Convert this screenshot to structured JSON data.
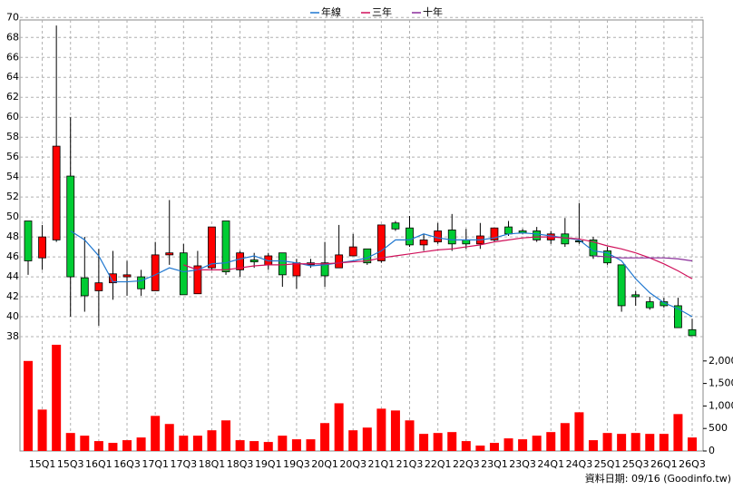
{
  "chart_data": {
    "type": "candlestick",
    "legend": [
      "年線",
      "三年",
      "十年"
    ],
    "footer": "資料日期: 09/16  (Goodinfo.tw)",
    "categories": [
      null,
      "15Q1",
      null,
      "15Q3",
      null,
      "16Q1",
      null,
      "16Q3",
      null,
      "17Q1",
      null,
      "17Q3",
      null,
      "18Q1",
      null,
      "18Q3",
      null,
      "19Q1",
      null,
      "19Q3",
      null,
      "20Q1",
      null,
      "20Q3",
      null,
      "21Q1",
      null,
      "21Q3",
      null,
      "22Q1",
      null,
      "22Q3",
      null,
      "23Q1",
      null,
      "23Q3",
      null,
      "24Q1",
      null,
      "24Q3",
      null,
      "25Q1",
      null,
      "25Q3",
      null,
      "26Q1",
      null,
      "26Q3"
    ],
    "open": [
      49.6,
      45.9,
      47.7,
      54.1,
      43.9,
      42.6,
      43.4,
      44.0,
      44.0,
      42.6,
      46.2,
      46.4,
      42.3,
      44.9,
      49.6,
      44.7,
      45.7,
      45.2,
      46.4,
      44.1,
      45.2,
      45.4,
      44.9,
      46.1,
      46.8,
      45.6,
      49.4,
      48.9,
      47.2,
      47.5,
      48.7,
      47.7,
      47.3,
      47.7,
      49.0,
      48.6,
      48.6,
      47.7,
      48.3,
      47.6,
      47.7,
      46.6,
      45.2,
      42.2,
      41.5,
      41.5,
      41.1,
      38.7
    ],
    "high": [
      49.6,
      49.2,
      69.2,
      60.0,
      48.0,
      46.8,
      46.6,
      45.6,
      44.7,
      47.5,
      51.7,
      47.3,
      46.6,
      49.0,
      49.6,
      46.6,
      46.4,
      46.4,
      46.4,
      45.8,
      45.8,
      47.5,
      49.2,
      48.3,
      46.8,
      49.2,
      49.6,
      50.1,
      48.3,
      49.4,
      50.3,
      48.8,
      49.4,
      48.9,
      49.6,
      48.8,
      49.0,
      48.6,
      49.9,
      51.4,
      48.0,
      47.0,
      45.2,
      42.6,
      42.0,
      41.9,
      41.9,
      39.8
    ],
    "low": [
      44.2,
      44.7,
      47.5,
      40.0,
      40.5,
      39.1,
      41.7,
      42.1,
      42.1,
      42.6,
      45.2,
      42.2,
      42.3,
      44.7,
      44.2,
      44.0,
      44.9,
      44.7,
      43.0,
      42.8,
      44.9,
      43.0,
      44.9,
      46.1,
      45.2,
      45.4,
      48.6,
      47.0,
      46.6,
      47.3,
      46.6,
      46.8,
      46.8,
      47.5,
      48.1,
      48.3,
      47.5,
      47.3,
      47.0,
      47.3,
      45.8,
      45.2,
      40.5,
      41.1,
      40.7,
      40.9,
      38.9,
      38.1
    ],
    "close": [
      45.6,
      48.0,
      57.1,
      44.0,
      42.1,
      43.4,
      44.3,
      44.2,
      42.8,
      46.2,
      46.4,
      42.2,
      45.1,
      49.0,
      44.5,
      46.4,
      45.5,
      46.1,
      44.2,
      45.4,
      45.4,
      44.1,
      46.2,
      47.0,
      45.4,
      49.2,
      48.8,
      47.2,
      47.7,
      48.6,
      47.3,
      47.3,
      48.1,
      48.9,
      48.3,
      48.4,
      47.7,
      48.3,
      47.3,
      47.5,
      46.1,
      45.4,
      41.1,
      42.0,
      40.9,
      41.1,
      38.9,
      38.1
    ],
    "up_color": "#ff0000",
    "down_color": "#00cc33",
    "series": [
      {
        "name": "年線",
        "color": "#1f77d0",
        "values": [
          null,
          null,
          null,
          48.6,
          47.7,
          46.1,
          43.5,
          43.5,
          43.6,
          44.2,
          44.9,
          44.5,
          44.7,
          45.3,
          45.4,
          45.8,
          46.1,
          45.6,
          45.6,
          45.4,
          45.1,
          45.2,
          45.4,
          45.6,
          45.9,
          46.6,
          47.7,
          47.7,
          48.3,
          47.9,
          47.7,
          47.7,
          47.7,
          47.9,
          48.3,
          48.4,
          48.3,
          48.1,
          47.9,
          47.7,
          46.6,
          46.4,
          45.6,
          43.8,
          42.4,
          41.4,
          40.8,
          40.0
        ]
      },
      {
        "name": "三年",
        "color": "#d0105a",
        "values": [
          null,
          null,
          null,
          null,
          null,
          null,
          null,
          null,
          null,
          null,
          null,
          45.2,
          44.7,
          44.7,
          44.7,
          44.9,
          45.1,
          45.2,
          45.2,
          45.3,
          45.3,
          45.3,
          45.4,
          45.5,
          45.6,
          45.9,
          46.1,
          46.3,
          46.5,
          46.7,
          46.8,
          47.0,
          47.2,
          47.5,
          47.7,
          47.9,
          48.0,
          48.0,
          47.9,
          47.8,
          47.5,
          47.1,
          46.8,
          46.4,
          45.9,
          45.3,
          44.6,
          43.8
        ]
      },
      {
        "name": "十年",
        "color": "#8a2d9a",
        "values": [
          null,
          null,
          null,
          null,
          null,
          null,
          null,
          null,
          null,
          null,
          null,
          null,
          null,
          null,
          null,
          null,
          null,
          null,
          null,
          null,
          null,
          null,
          null,
          null,
          null,
          null,
          null,
          null,
          null,
          null,
          null,
          null,
          null,
          null,
          null,
          null,
          null,
          null,
          null,
          null,
          46.1,
          46.0,
          45.9,
          45.9,
          45.9,
          45.9,
          45.8,
          45.6
        ]
      }
    ],
    "ylim": [
      37,
      70
    ],
    "yticks": [
      38,
      40,
      42,
      44,
      46,
      48,
      50,
      52,
      54,
      56,
      58,
      60,
      62,
      64,
      66,
      68,
      70
    ],
    "volume": {
      "color": "#ff0000",
      "values": [
        2000,
        920,
        2360,
        400,
        340,
        220,
        180,
        240,
        300,
        780,
        600,
        340,
        340,
        460,
        680,
        240,
        220,
        200,
        340,
        260,
        260,
        620,
        1060,
        460,
        520,
        940,
        900,
        680,
        380,
        400,
        420,
        220,
        120,
        180,
        280,
        260,
        340,
        420,
        620,
        860,
        240,
        400,
        380,
        400,
        380,
        380,
        820,
        300
      ],
      "ylim": [
        0,
        2500
      ],
      "yticks": [
        0,
        500,
        {
          "value": 1000,
          "label": "1,000"
        },
        {
          "value": 1500,
          "label": "1,500"
        },
        {
          "value": 2000,
          "label": "2,000"
        }
      ]
    },
    "grid": true
  }
}
